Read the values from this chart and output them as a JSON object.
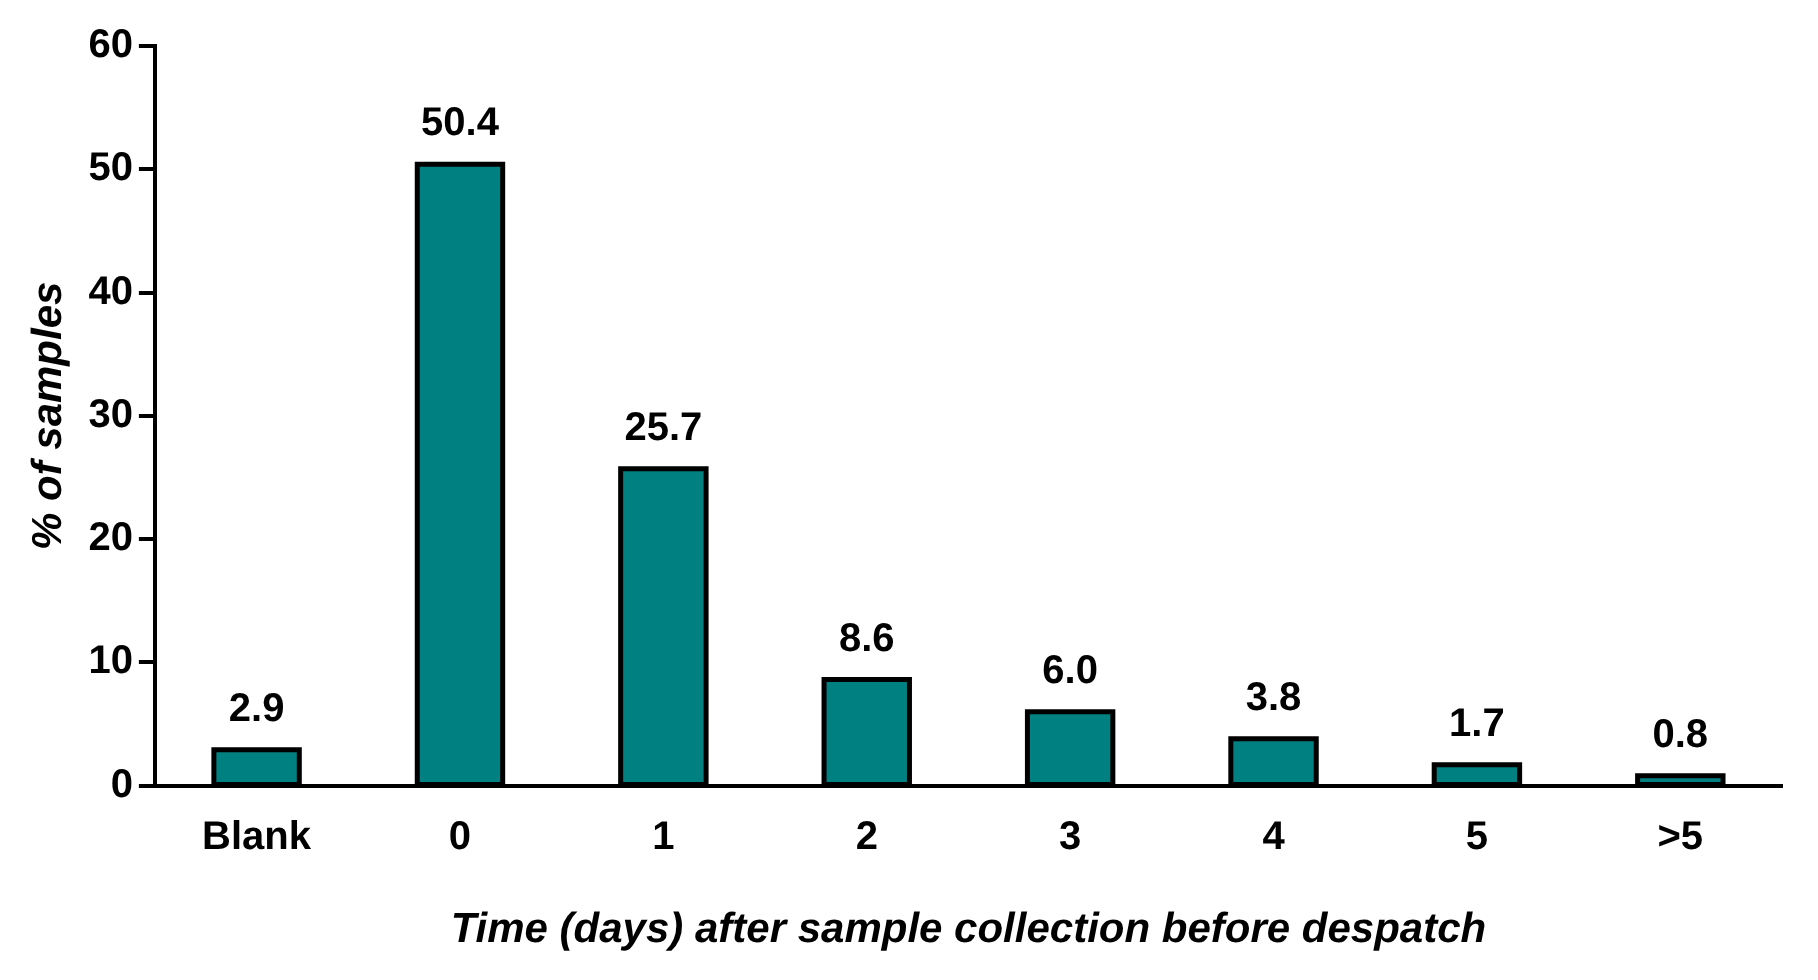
{
  "chart_data": {
    "type": "bar",
    "xlabel": "Time (days) after sample collection before despatch",
    "ylabel": "% of samples",
    "categories": [
      "Blank",
      "0",
      "1",
      "2",
      "3",
      "4",
      "5",
      ">5"
    ],
    "values": [
      2.9,
      50.4,
      25.7,
      8.6,
      6.0,
      3.8,
      1.7,
      0.8
    ],
    "value_labels": [
      "2.9",
      "50.4",
      "25.7",
      "8.6",
      "6.0",
      "3.8",
      "1.7",
      "0.8"
    ],
    "color": "#008080",
    "ylim": [
      0,
      60
    ],
    "yticks": [
      0,
      10,
      20,
      30,
      40,
      50,
      60
    ],
    "grid": false,
    "legend": false
  }
}
